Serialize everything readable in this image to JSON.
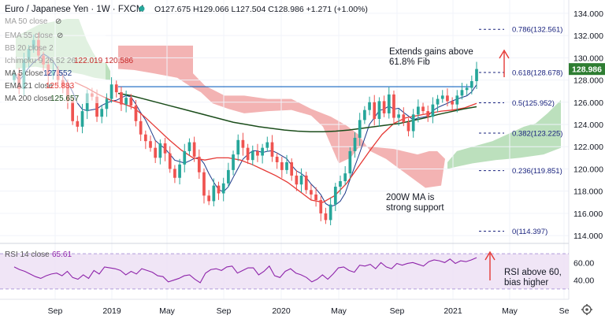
{
  "header": {
    "title": "Euro / Japanese Yen · 1W · FXCM",
    "ohlc": "O127.675  H129.066  L127.504  C128.986  +1.271 (+1.00%)"
  },
  "indicators": {
    "ma50": "MA 50 close",
    "ema55": "EMA 55 close",
    "bb": "BB 20 close 2",
    "ichimoku": "Ichimoku 9 26 52 26",
    "ichimoku_values": "122.019  120.586",
    "ma5": "MA 5 close",
    "ma5_value": "127.552",
    "ema21": "EMA 21 close",
    "ema21_value": "125.883",
    "ma200": "MA 200 close",
    "ma200_value": "125.657",
    "rsi": "RSI 14 close",
    "rsi_value": "65.61"
  },
  "annotations": {
    "fib_gain_line1": "Extends gains above",
    "fib_gain_line2": "61.8% Fib",
    "ma_support_line1": "200W MA is",
    "ma_support_line2": "strong support",
    "rsi_line1": "RSI above 60,",
    "rsi_line2": "bias higher"
  },
  "price_badge": "128.986",
  "colors": {
    "bull": "#26a69a",
    "bear": "#ef5350",
    "ema21": "#e53935",
    "ma5": "#1e3a8a",
    "ma200": "#1b4d1b",
    "cloud_bull": "#a5d6a7",
    "cloud_bear": "#ef9a9a",
    "rsi": "#8e24aa",
    "fib": "#1a237e",
    "badge": "#2e7d32"
  },
  "chart_data": [
    {
      "type": "line",
      "title": "Euro / Japanese Yen",
      "timeframe": "1W",
      "source": "FXCM",
      "price_axis": [
        114,
        116,
        118,
        120,
        122,
        124,
        126,
        128,
        130,
        132,
        134
      ],
      "price_axis_labels": [
        "114.000",
        "116.000",
        "118.000",
        "120.000",
        "122.000",
        "124.000",
        "126.000",
        "128.000",
        "130.000",
        "132.000",
        "134.000"
      ],
      "ylim": [
        113.3,
        135.2
      ],
      "time_axis": [
        "Sep",
        "2019",
        "May",
        "Sep",
        "2020",
        "May",
        "Sep",
        "2021",
        "May",
        "Se"
      ],
      "last_close": 128.986,
      "fib_levels": [
        {
          "label": "0.786(132.561)",
          "value": 132.561
        },
        {
          "label": "0.618(128.678)",
          "value": 128.678
        },
        {
          "label": "0.5(125.952)",
          "value": 125.952
        },
        {
          "label": "0.382(123.225)",
          "value": 123.225
        },
        {
          "label": "0.236(119.851)",
          "value": 119.851
        },
        {
          "label": "0(114.397)",
          "value": 114.397
        }
      ],
      "horizontal_resistance": 127.4,
      "close_series": [
        128.6,
        127.2,
        129.8,
        130.8,
        131.6,
        130.2,
        129.4,
        128.4,
        128.9,
        128.0,
        127.4,
        126.1,
        124.3,
        123.8,
        125.2,
        126.8,
        126.5,
        124.7,
        125.4,
        126.3,
        127.6,
        126.9,
        125.8,
        126.4,
        125.7,
        124.3,
        123.1,
        122.5,
        121.9,
        121.0,
        122.3,
        121.4,
        120.0,
        119.2,
        120.4,
        121.6,
        122.4,
        121.1,
        119.7,
        117.6,
        117.1,
        118.5,
        117.8,
        118.7,
        119.9,
        121.3,
        122.6,
        121.9,
        120.8,
        121.6,
        121.2,
        121.9,
        122.4,
        121.1,
        120.6,
        119.9,
        120.6,
        119.4,
        118.6,
        119.4,
        118.1,
        117.7,
        117.2,
        116.0,
        115.4,
        116.8,
        118.4,
        118.9,
        119.6,
        121.6,
        122.8,
        124.4,
        125.3,
        126.0,
        124.5,
        126.1,
        125.0,
        126.7,
        124.6,
        124.9,
        124.2,
        123.4,
        124.9,
        125.6,
        125.2,
        124.7,
        125.8,
        126.3,
        126.6,
        126.1,
        125.8,
        126.6,
        127.1,
        127.3,
        127.9,
        128.99
      ],
      "ma200_series": [
        126.8,
        126.6,
        126.3,
        126.0,
        125.7,
        125.4,
        125.1,
        124.8,
        124.5,
        124.2,
        124.0,
        123.8,
        123.65,
        123.5,
        123.4,
        123.35,
        123.35,
        123.4,
        123.5,
        123.65,
        123.8,
        123.95,
        124.1,
        124.35,
        124.6,
        124.9,
        125.15,
        125.4,
        125.6
      ],
      "ema21_series": [
        127.8,
        127.3,
        126.7,
        126.2,
        125.9,
        125.5,
        124.6,
        123.6,
        122.6,
        121.7,
        121.0,
        120.8,
        121.0,
        121.0,
        120.8,
        120.4,
        119.9,
        119.4,
        118.8,
        118.0,
        117.2,
        117.0,
        117.6,
        118.7,
        120.2,
        121.7,
        123.1,
        124.1,
        124.6,
        124.8,
        125.0,
        125.2,
        125.3,
        125.5,
        125.9
      ],
      "rsi": {
        "label": "RSI 14 close",
        "ticks": [
          40,
          60
        ],
        "band": [
          30,
          70
        ],
        "last": 65.61,
        "values": [
          55,
          52,
          50,
          47,
          44,
          42,
          45,
          47,
          48,
          45,
          50,
          43,
          41,
          46,
          42,
          51,
          47,
          55,
          54,
          53,
          51,
          46,
          50,
          47,
          53,
          51,
          49,
          45,
          44,
          38,
          40,
          42,
          45,
          46,
          41,
          37,
          48,
          52,
          53,
          51,
          55,
          56,
          48,
          51,
          54,
          54,
          46,
          50,
          56,
          45,
          43,
          50,
          53,
          48,
          46,
          43,
          38,
          41,
          46,
          41,
          47,
          54,
          55,
          51,
          49,
          57,
          56,
          58,
          53,
          60,
          55,
          53,
          59,
          57,
          59,
          60,
          58,
          56,
          61,
          63,
          62,
          60,
          64,
          59,
          62,
          61,
          63,
          65.61
        ]
      }
    }
  ]
}
